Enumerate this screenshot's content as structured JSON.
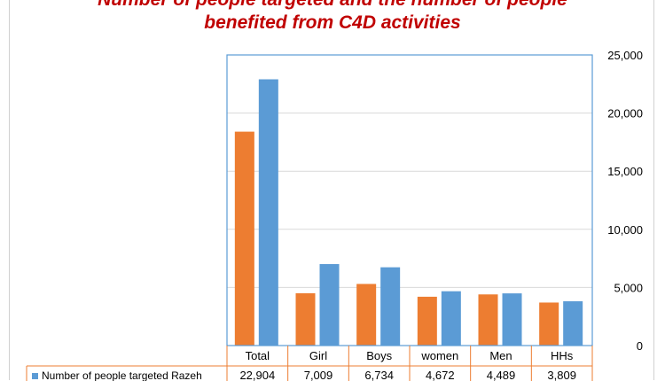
{
  "title_line1": "Number of people targeted and the number of people",
  "title_line2": "benefited from C4D activities",
  "chart_data": {
    "type": "bar",
    "categories": [
      "Total",
      "Girl",
      "Boys",
      "women",
      "Men",
      "HHs"
    ],
    "ylim": [
      0,
      25000
    ],
    "yticks": [
      "0",
      "5,000",
      "10,000",
      "15,000",
      "20,000",
      "25,000"
    ],
    "y_axis_side": "right",
    "grid": true,
    "series": [
      {
        "values": [
          18400,
          4500,
          5300,
          4200,
          4400,
          3700
        ],
        "color": "#ed7d31"
      },
      {
        "name": "Number of people targeted Razeh",
        "values": [
          22904,
          7009,
          6734,
          4672,
          4489,
          3809
        ],
        "value_labels": [
          "22,904",
          "7,009",
          "6,734",
          "4,672",
          "4,489",
          "3,809"
        ],
        "color": "#5b9bd5"
      }
    ]
  }
}
